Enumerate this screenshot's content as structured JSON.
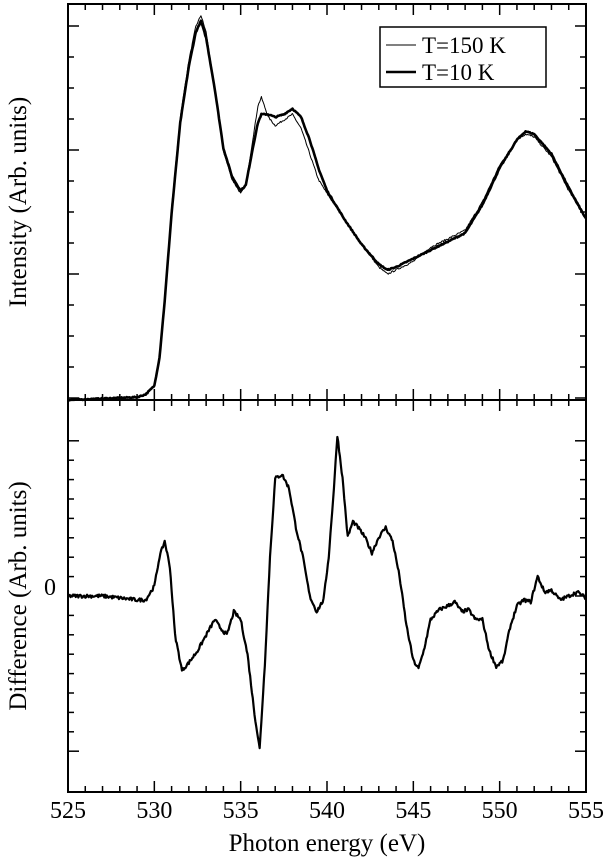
{
  "chart_data": [
    {
      "type": "line",
      "panel": "top",
      "ylabel": "Intensity (Arb. units)",
      "xlim": [
        525,
        555
      ],
      "ylim": [
        0,
        1.4
      ],
      "y_tick_labels": "none",
      "legend_position": "top-right",
      "series": [
        {
          "name": "T=150 K",
          "line": "thin",
          "x": [
            525,
            527,
            529,
            529.5,
            530,
            530.3,
            530.6,
            531,
            531.5,
            532,
            532.4,
            532.7,
            533,
            533.5,
            534,
            534.5,
            535,
            535.3,
            535.7,
            536,
            536.2,
            536.6,
            537,
            537.5,
            538,
            538.5,
            539,
            539.5,
            540,
            541,
            542,
            543,
            543.5,
            544,
            545,
            546,
            547,
            548,
            549,
            550,
            551,
            551.5,
            552,
            553,
            554,
            555
          ],
          "y": [
            0.0,
            0.005,
            0.01,
            0.02,
            0.05,
            0.15,
            0.35,
            0.68,
            1.0,
            1.2,
            1.32,
            1.36,
            1.3,
            1.1,
            0.88,
            0.78,
            0.73,
            0.76,
            0.92,
            1.04,
            1.07,
            1.0,
            0.97,
            0.99,
            1.01,
            0.96,
            0.87,
            0.78,
            0.73,
            0.64,
            0.55,
            0.47,
            0.445,
            0.46,
            0.49,
            0.54,
            0.57,
            0.6,
            0.7,
            0.83,
            0.92,
            0.94,
            0.93,
            0.86,
            0.74,
            0.64
          ]
        },
        {
          "name": "T=10 K",
          "line": "thick",
          "x": [
            525,
            527,
            529,
            529.5,
            530,
            530.3,
            530.6,
            531,
            531.5,
            532,
            532.4,
            532.7,
            533,
            533.5,
            534,
            534.5,
            535,
            535.3,
            535.7,
            536,
            536.2,
            536.6,
            537,
            537.5,
            538,
            538.5,
            539,
            539.5,
            540,
            541,
            542,
            543,
            543.5,
            544,
            545,
            546,
            547,
            548,
            549,
            550,
            551,
            551.5,
            552,
            553,
            554,
            555
          ],
          "y": [
            0.0,
            0.005,
            0.01,
            0.02,
            0.05,
            0.15,
            0.35,
            0.66,
            0.98,
            1.18,
            1.3,
            1.34,
            1.28,
            1.1,
            0.89,
            0.79,
            0.74,
            0.76,
            0.89,
            0.98,
            1.01,
            1.01,
            1.0,
            1.01,
            1.03,
            1.0,
            0.92,
            0.82,
            0.74,
            0.64,
            0.55,
            0.48,
            0.46,
            0.47,
            0.5,
            0.53,
            0.56,
            0.59,
            0.69,
            0.82,
            0.92,
            0.95,
            0.94,
            0.87,
            0.75,
            0.64
          ]
        }
      ]
    },
    {
      "type": "line",
      "panel": "bottom",
      "xlabel": "Photon energy (eV)",
      "ylabel": "Difference (Arb. units)",
      "xlim": [
        525,
        555
      ],
      "ylim": [
        -1.0,
        1.0
      ],
      "x_ticks": [
        525,
        530,
        535,
        540,
        545,
        550,
        555
      ],
      "x_tick_labels": [
        "525",
        "530",
        "535",
        "540",
        "545",
        "550",
        "555"
      ],
      "y_ticks": [
        0
      ],
      "y_tick_labels": [
        "0"
      ],
      "series": [
        {
          "line": "thick",
          "x": [
            525,
            526,
            527,
            528,
            529,
            529.5,
            530,
            530.3,
            530.6,
            530.9,
            531.2,
            531.6,
            532,
            532.5,
            533,
            533.5,
            533.8,
            534.2,
            534.6,
            535,
            535.4,
            535.8,
            536.1,
            536.4,
            536.7,
            537,
            537.4,
            537.8,
            538.2,
            538.6,
            539,
            539.4,
            539.8,
            540.1,
            540.4,
            540.6,
            540.9,
            541.2,
            541.5,
            541.8,
            542.2,
            542.6,
            543,
            543.4,
            543.8,
            544.2,
            544.6,
            545,
            545.3,
            545.6,
            546,
            546.5,
            547,
            547.4,
            547.8,
            548.2,
            548.6,
            549,
            549.4,
            549.8,
            550.2,
            550.6,
            551,
            551.4,
            551.8,
            552.2,
            552.6,
            553,
            553.5,
            554,
            554.5,
            555
          ],
          "y": [
            0.0,
            0.0,
            0.0,
            -0.01,
            -0.02,
            -0.02,
            0.05,
            0.2,
            0.28,
            0.15,
            -0.2,
            -0.38,
            -0.34,
            -0.28,
            -0.2,
            -0.12,
            -0.16,
            -0.2,
            -0.08,
            -0.12,
            -0.3,
            -0.6,
            -0.78,
            -0.35,
            0.2,
            0.6,
            0.62,
            0.55,
            0.35,
            0.2,
            0.0,
            -0.08,
            -0.02,
            0.2,
            0.55,
            0.82,
            0.6,
            0.3,
            0.38,
            0.35,
            0.3,
            0.22,
            0.3,
            0.35,
            0.28,
            0.1,
            -0.15,
            -0.33,
            -0.37,
            -0.28,
            -0.12,
            -0.07,
            -0.05,
            -0.03,
            -0.08,
            -0.07,
            -0.12,
            -0.12,
            -0.28,
            -0.36,
            -0.33,
            -0.16,
            -0.05,
            -0.02,
            -0.03,
            0.1,
            0.02,
            0.03,
            -0.02,
            0.0,
            0.02,
            -0.01
          ]
        }
      ]
    }
  ],
  "top_panel": {
    "ylabel": "Intensity (Arb. units)",
    "legend": [
      {
        "label": "T=150 K"
      },
      {
        "label": "T=10 K"
      }
    ]
  },
  "bottom_panel": {
    "ylabel": "Difference (Arb. units)",
    "xlabel": "Photon energy (eV)",
    "zero_label": "0",
    "x_tick_labels": [
      "525",
      "530",
      "535",
      "540",
      "545",
      "550",
      "555"
    ]
  }
}
